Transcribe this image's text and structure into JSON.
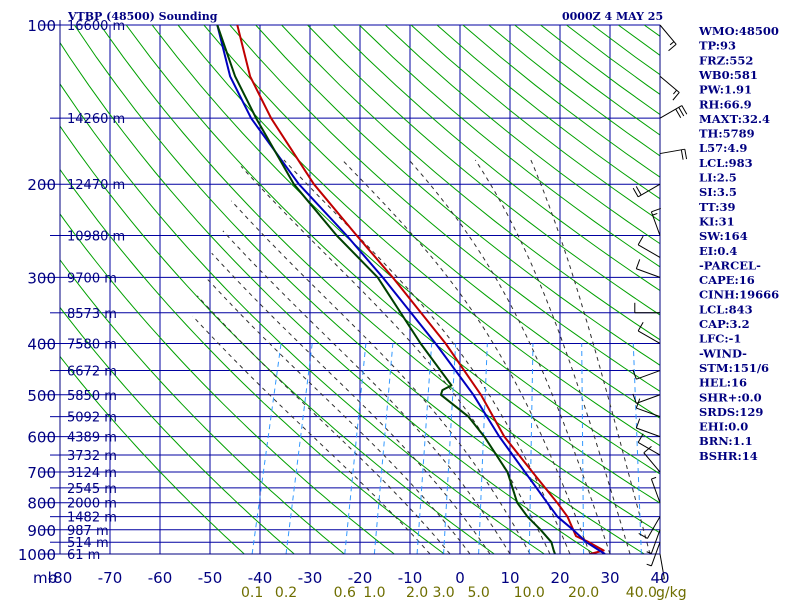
{
  "header": {
    "station": "VTBP (48500) Sounding",
    "time": "0000Z  4 MAY 25"
  },
  "axis_labels": {
    "p_unit": "mb",
    "mix_unit": "g/kg"
  },
  "indices": [
    "WMO:48500",
    "TP:93",
    "FRZ:552",
    "WB0:581",
    "PW:1.91",
    "RH:66.9",
    "MAXT:32.4",
    "TH:5789",
    "L57:4.9",
    "LCL:983",
    "LI:2.5",
    "SI:3.5",
    "TT:39",
    "KI:31",
    "SW:164",
    "EI:0.4",
    "-PARCEL-",
    "CAPE:16",
    "CINH:19666",
    "LCL:843",
    "CAP:3.2",
    "LFC:-1",
    "-WIND-",
    "STM:151/6",
    "HEL:16",
    "SHR+:0.0",
    "SRDS:129",
    "EHI:0.0",
    "BRN:1.1",
    "BSHR:14"
  ],
  "colors": {
    "axis": "#000080",
    "grid": "#0000a0",
    "dry_adiabat": "#00a000",
    "moist_adiabat": "#303030",
    "mixing_ratio": "#3399ff",
    "temperature": "#c00000",
    "parcel": "#0000c0",
    "dewpoint": "#004000",
    "mix_label": "#6e6e00"
  },
  "chart_data": {
    "type": "line",
    "title": "VTBP (48500) Sounding",
    "subtitle": "0000Z  4 MAY 25",
    "xlabel": "",
    "ylabel": "mb",
    "xlim": [
      -80,
      40
    ],
    "ylim": [
      1000,
      100
    ],
    "y_scale": "log",
    "grid": true,
    "pressure_ticks": [
      100,
      200,
      300,
      400,
      500,
      600,
      700,
      800,
      900,
      1000
    ],
    "pressure_tick_labels": [
      "100",
      "200",
      "300",
      "400",
      "500",
      "600",
      "700",
      "800",
      "900",
      "1000"
    ],
    "pressure_minor": [
      150,
      250,
      350,
      450,
      550,
      650,
      750,
      850,
      950
    ],
    "temperature_ticks": [
      -80,
      -70,
      -60,
      -50,
      -40,
      -30,
      -20,
      -10,
      0,
      10,
      20,
      30,
      40
    ],
    "temperature_tick_labels": [
      "-80",
      "-70",
      "-60",
      "-50",
      "-40",
      "-30",
      "-20",
      "-10",
      "0",
      "10",
      "20",
      "30",
      "40"
    ],
    "height_labels": [
      {
        "p": 100,
        "text": "16600 m"
      },
      {
        "p": 150,
        "text": "14260 m"
      },
      {
        "p": 200,
        "text": "12470 m"
      },
      {
        "p": 250,
        "text": "10980 m"
      },
      {
        "p": 300,
        "text": "9700 m"
      },
      {
        "p": 350,
        "text": "8573 m"
      },
      {
        "p": 400,
        "text": "7580 m"
      },
      {
        "p": 450,
        "text": "6672 m"
      },
      {
        "p": 500,
        "text": "5850 m"
      },
      {
        "p": 550,
        "text": "5092 m"
      },
      {
        "p": 600,
        "text": "4389 m"
      },
      {
        "p": 650,
        "text": "3732 m"
      },
      {
        "p": 700,
        "text": "3124 m"
      },
      {
        "p": 750,
        "text": "2545 m"
      },
      {
        "p": 800,
        "text": "2000 m"
      },
      {
        "p": 850,
        "text": "1482 m"
      },
      {
        "p": 900,
        "text": "987 m"
      },
      {
        "p": 950,
        "text": "514 m"
      },
      {
        "p": 1000,
        "text": "61 m"
      }
    ],
    "mixing_ratio_labels": [
      "0.1",
      "0.2",
      "0.6",
      "1.0",
      "2.0",
      "3.0",
      "5.0",
      "10.0",
      "20.0",
      "40.0"
    ],
    "mixing_ratio_values": [
      0.1,
      0.2,
      0.6,
      1.0,
      2.0,
      3.0,
      5.0,
      10.0,
      20.0,
      40.0
    ],
    "series": [
      {
        "key": "temperature",
        "p": [
          1000,
          985,
          950,
          925,
          850,
          800,
          700,
          600,
          500,
          400,
          300,
          250,
          200,
          150,
          125,
          100
        ],
        "t": [
          26.0,
          28.5,
          25.0,
          22.0,
          19.0,
          16.0,
          9.0,
          1.0,
          -6.5,
          -17.0,
          -32.0,
          -42.0,
          -54.0,
          -67.0,
          -74.0,
          -80.0
        ]
      },
      {
        "key": "parcel",
        "p": [
          1000,
          983,
          950,
          900,
          850,
          800,
          700,
          600,
          500,
          400,
          300,
          250,
          200,
          150,
          125,
          100
        ],
        "t": [
          29.0,
          27.5,
          24.5,
          21.0,
          17.0,
          14.0,
          7.5,
          0.0,
          -8.0,
          -19.0,
          -34.0,
          -44.0,
          -57.0,
          -71.0,
          -78.0,
          -84.0
        ]
      },
      {
        "key": "dewpoint",
        "p": [
          1000,
          985,
          950,
          900,
          850,
          800,
          700,
          600,
          550,
          500,
          490,
          480,
          400,
          300,
          250,
          200,
          150,
          125,
          100
        ],
        "t": [
          19.0,
          18.5,
          17.5,
          14.5,
          11.0,
          8.0,
          4.0,
          -3.0,
          -7.5,
          -14.5,
          -14.5,
          -13.0,
          -22.0,
          -35.0,
          -46.0,
          -58.0,
          -70.0,
          -77.0,
          -84.0
        ]
      }
    ],
    "wind_barbs": [
      {
        "p": 100,
        "dir": 140,
        "spd": 15
      },
      {
        "p": 125,
        "dir": 130,
        "spd": 15
      },
      {
        "p": 150,
        "dir": 60,
        "spd": 30
      },
      {
        "p": 175,
        "dir": 80,
        "spd": 20
      },
      {
        "p": 200,
        "dir": 240,
        "spd": 20
      },
      {
        "p": 250,
        "dir": 340,
        "spd": 15
      },
      {
        "p": 275,
        "dir": 300,
        "spd": 10
      },
      {
        "p": 300,
        "dir": 290,
        "spd": 10
      },
      {
        "p": 350,
        "dir": 270,
        "spd": 10
      },
      {
        "p": 400,
        "dir": 300,
        "spd": 10
      },
      {
        "p": 450,
        "dir": 250,
        "spd": 10
      },
      {
        "p": 500,
        "dir": 250,
        "spd": 10
      },
      {
        "p": 550,
        "dir": 290,
        "spd": 10
      },
      {
        "p": 600,
        "dir": 290,
        "spd": 10
      },
      {
        "p": 650,
        "dir": 300,
        "spd": 10
      },
      {
        "p": 700,
        "dir": 320,
        "spd": 10
      },
      {
        "p": 800,
        "dir": 340,
        "spd": 5
      },
      {
        "p": 850,
        "dir": 210,
        "spd": 10
      },
      {
        "p": 900,
        "dir": 200,
        "spd": 5
      },
      {
        "p": 950,
        "dir": 200,
        "spd": 5
      },
      {
        "p": 1000,
        "dir": 170,
        "spd": 5
      }
    ]
  }
}
